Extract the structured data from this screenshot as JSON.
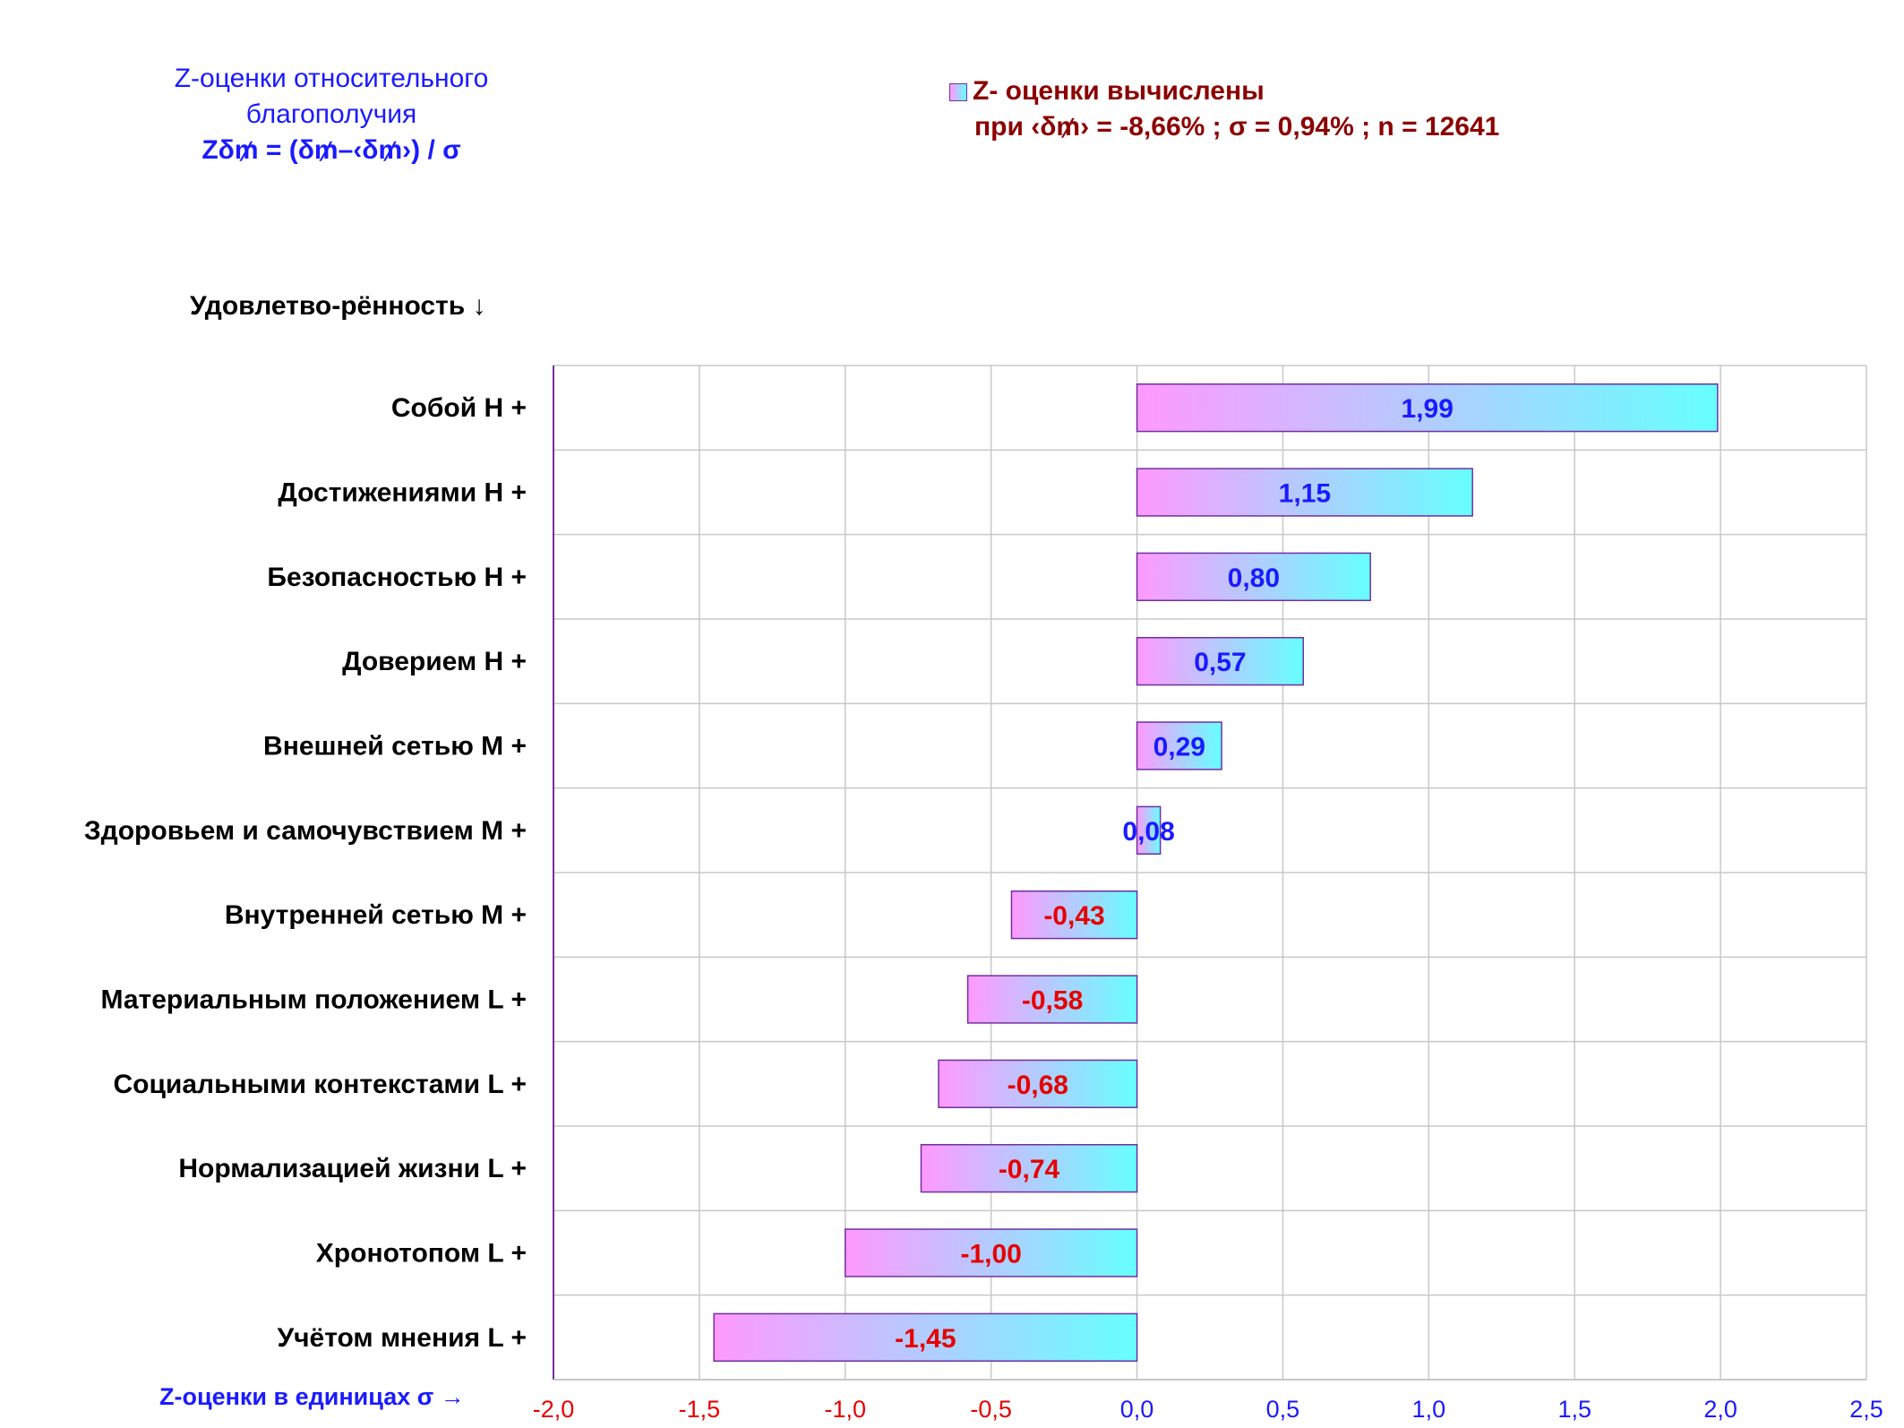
{
  "title": {
    "line1": "Z-оценки  относительного",
    "line2": "благополучия",
    "line3": "Zδ₥ = (δ₥–‹δ₥›) / σ"
  },
  "legend": {
    "label": "Z- оценки вычислены",
    "params": "при ‹δ₥› = -8,66% ; σ = 0,94% ; n = 12641"
  },
  "chart_data": {
    "type": "bar",
    "orientation": "horizontal",
    "ylabel": "Удовлетво-рённость ↓",
    "xlabel": "Z-оценки в единицах σ →",
    "xlim": [
      -2.0,
      2.5
    ],
    "xticks": [
      "-2,0",
      "-1,5",
      "-1,0",
      "-0,5",
      "0,0",
      "0,5",
      "1,0",
      "1,5",
      "2,0",
      "2,5"
    ],
    "grid": true,
    "legend_position": "top-right",
    "categories": [
      "Собой  Н +",
      "Достижениями  Н +",
      "Безопасностью  Н +",
      "Доверием  Н +",
      "Внешней сетью  М +",
      "Здоровьем и самочувствием  М +",
      "Внутренней сетью  М +",
      "Материальным положением  L +",
      "Социальными контекстами  L +",
      "Нормализацией жизни  L +",
      "Хронотопом  L +",
      "Учётом мнения  L +"
    ],
    "values": [
      1.99,
      1.15,
      0.8,
      0.57,
      0.29,
      0.08,
      -0.43,
      -0.58,
      -0.68,
      -0.74,
      -1.0,
      -1.45
    ],
    "value_labels": [
      "1,99",
      "1,15",
      "0,80",
      "0,57",
      "0,29",
      "0,08",
      "-0,43",
      "-0,58",
      "-0,68",
      "-0,74",
      "-1,00",
      "-1,45"
    ],
    "colors": {
      "bar_left": "#ff99ff",
      "bar_right": "#66ffff",
      "bar_border": "#7030a0",
      "positive_label": "#1a1aff",
      "negative_label": "#e60000",
      "grid": "#c8c8c8",
      "axis": "#7030a0"
    }
  }
}
